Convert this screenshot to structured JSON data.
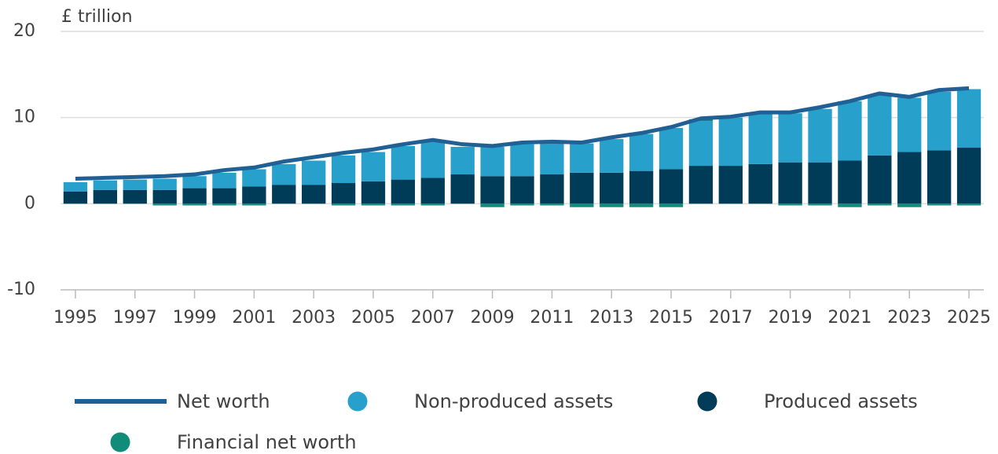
{
  "chart_data": {
    "type": "stacked-bar-line",
    "y_label": "£ trillion",
    "x": [
      1995,
      1996,
      1997,
      1998,
      1999,
      2000,
      2001,
      2002,
      2003,
      2004,
      2005,
      2006,
      2007,
      2008,
      2009,
      2010,
      2011,
      2012,
      2013,
      2014,
      2015,
      2016,
      2017,
      2018,
      2019,
      2020,
      2021,
      2022,
      2023,
      2024,
      2025
    ],
    "xlim": [
      1994.5,
      2025.5
    ],
    "xticks": [
      1995,
      1997,
      1999,
      2001,
      2003,
      2005,
      2007,
      2009,
      2011,
      2013,
      2015,
      2017,
      2019,
      2021,
      2023,
      2025
    ],
    "ylim": [
      -10,
      20
    ],
    "yticks": [
      -10,
      0,
      10,
      20
    ],
    "grid": true,
    "series": [
      {
        "name": "Produced assets",
        "type": "bar",
        "color": "#003c57",
        "values": [
          1.4,
          1.6,
          1.6,
          1.6,
          1.8,
          1.8,
          2.0,
          2.2,
          2.2,
          2.4,
          2.6,
          2.8,
          3.0,
          3.4,
          3.2,
          3.2,
          3.4,
          3.6,
          3.6,
          3.8,
          4.0,
          4.4,
          4.4,
          4.6,
          4.8,
          4.8,
          5.0,
          5.6,
          6.0,
          6.2,
          6.5
        ]
      },
      {
        "name": "Non-produced assets",
        "type": "bar",
        "color": "#27a0cc",
        "values": [
          1.1,
          1.1,
          1.2,
          1.3,
          1.4,
          1.8,
          2.0,
          2.4,
          2.8,
          3.2,
          3.4,
          3.9,
          4.2,
          3.2,
          3.4,
          3.7,
          3.6,
          3.4,
          3.9,
          4.3,
          4.8,
          5.2,
          5.6,
          5.8,
          5.7,
          6.2,
          6.9,
          7.0,
          6.3,
          6.8,
          6.8
        ]
      },
      {
        "name": "Financial net worth",
        "type": "bar",
        "color": "#118c7b",
        "values": [
          0,
          0,
          0,
          -0.2,
          -0.2,
          -0.2,
          -0.2,
          0,
          0,
          -0.2,
          -0.2,
          -0.2,
          -0.2,
          0,
          -0.4,
          -0.2,
          -0.2,
          -0.4,
          -0.4,
          -0.4,
          -0.4,
          0.2,
          0,
          0,
          -0.2,
          -0.2,
          -0.4,
          -0.2,
          -0.4,
          -0.2,
          -0.2
        ]
      },
      {
        "name": "Net worth",
        "type": "line",
        "color": "#206095",
        "values": [
          2.9,
          3.0,
          3.1,
          3.2,
          3.4,
          3.9,
          4.2,
          4.9,
          5.4,
          5.9,
          6.3,
          6.9,
          7.4,
          6.9,
          6.7,
          7.1,
          7.2,
          7.1,
          7.7,
          8.2,
          8.9,
          9.9,
          10.1,
          10.6,
          10.6,
          11.2,
          11.9,
          12.8,
          12.4,
          13.2,
          13.4
        ]
      }
    ]
  }
}
